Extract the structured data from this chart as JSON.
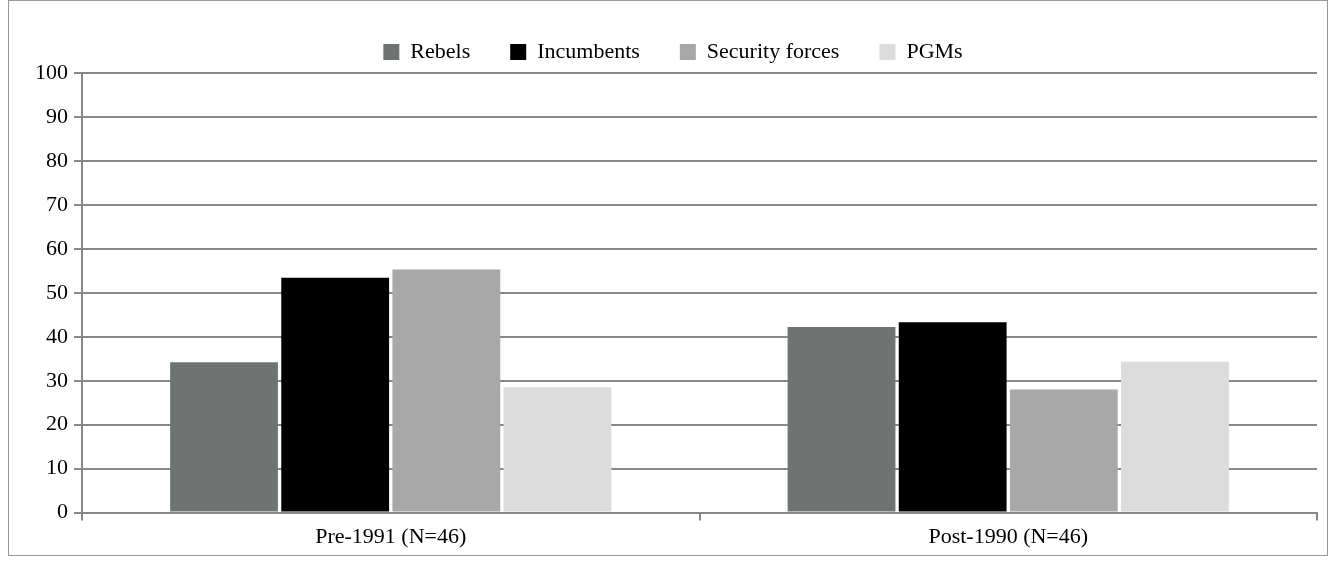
{
  "chart_data": {
    "type": "bar",
    "categories": [
      "Pre-1991 (N=46)",
      "Post-1990 (N=46)"
    ],
    "series": [
      {
        "name": "Rebels",
        "color": "#6f7472",
        "values": [
          34.2,
          42.2
        ]
      },
      {
        "name": "Incumbents",
        "color": "#000000",
        "values": [
          53.4,
          43.3
        ]
      },
      {
        "name": "Security forces",
        "color": "#a8a8a8",
        "values": [
          55.3,
          28
        ]
      },
      {
        "name": "PGMs",
        "color": "#dcdcdc",
        "values": [
          28.5,
          34.3
        ]
      }
    ],
    "ylim": [
      0,
      100
    ],
    "yticks": [
      0,
      10,
      20,
      30,
      40,
      50,
      60,
      70,
      80,
      90,
      100
    ],
    "grid": "y",
    "legend": "top"
  }
}
